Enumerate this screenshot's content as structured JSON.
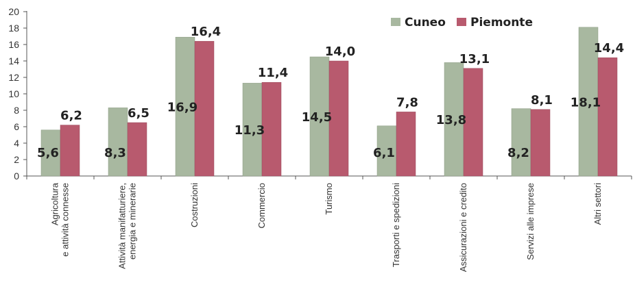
{
  "chart_data": {
    "type": "bar",
    "categories": [
      [
        "Agricoltura",
        "e attività connesse"
      ],
      [
        "Attività manifatturiere,",
        "energia e minerarie"
      ],
      [
        "Costruzioni"
      ],
      [
        "Commercio"
      ],
      [
        "Turismo"
      ],
      [
        "Trasporti e spedizioni"
      ],
      [
        "Assicurazioni e credito"
      ],
      [
        "Servizi alle imprese"
      ],
      [
        "Altri settori"
      ]
    ],
    "series": [
      {
        "name": "Cuneo",
        "color": "#a8b8a0",
        "values": [
          5.6,
          8.3,
          16.9,
          11.3,
          14.5,
          6.1,
          13.8,
          8.2,
          18.1
        ],
        "labels": [
          "5,6",
          "8,3",
          "16,9",
          "11,3",
          "14,5",
          "6,1",
          "13,8",
          "8,2",
          "18,1"
        ]
      },
      {
        "name": "Piemonte",
        "color": "#b85a6e",
        "values": [
          6.2,
          6.5,
          16.4,
          11.4,
          14.0,
          7.8,
          13.1,
          8.1,
          14.4
        ],
        "labels": [
          "6,2",
          "6,5",
          "16,4",
          "11,4",
          "14,0",
          "7,8",
          "13,1",
          "8,1",
          "14,4"
        ]
      }
    ],
    "yticks": [
      "0",
      "2",
      "4",
      "6",
      "8",
      "10",
      "12",
      "14",
      "16",
      "18",
      "20"
    ],
    "ylim": [
      0,
      20
    ],
    "title": "",
    "xlabel": "",
    "ylabel": "",
    "grid": false,
    "legend_position": "top-right"
  }
}
